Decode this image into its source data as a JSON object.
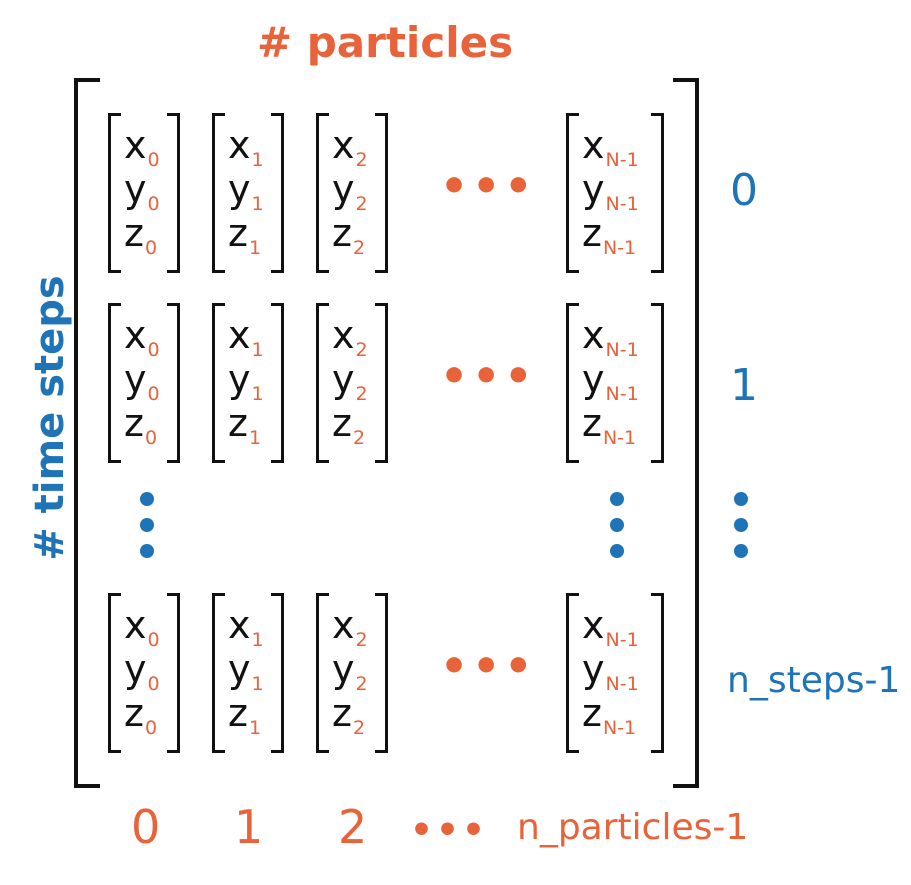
{
  "titles": {
    "columns": "# particles",
    "rows": "# time steps"
  },
  "colors": {
    "particle_accent": "#e8623a",
    "time_accent": "#1f73b7",
    "text": "#111111"
  },
  "vector_components": [
    "x",
    "y",
    "z"
  ],
  "column_subscripts": [
    "0",
    "1",
    "2",
    "N-1"
  ],
  "ellipsis_horizontal": "•••",
  "row_labels": [
    "0",
    "1",
    "n_steps-1"
  ],
  "column_labels": [
    "0",
    "1",
    "2",
    "n_particles-1"
  ],
  "column_ellipsis": "•••"
}
